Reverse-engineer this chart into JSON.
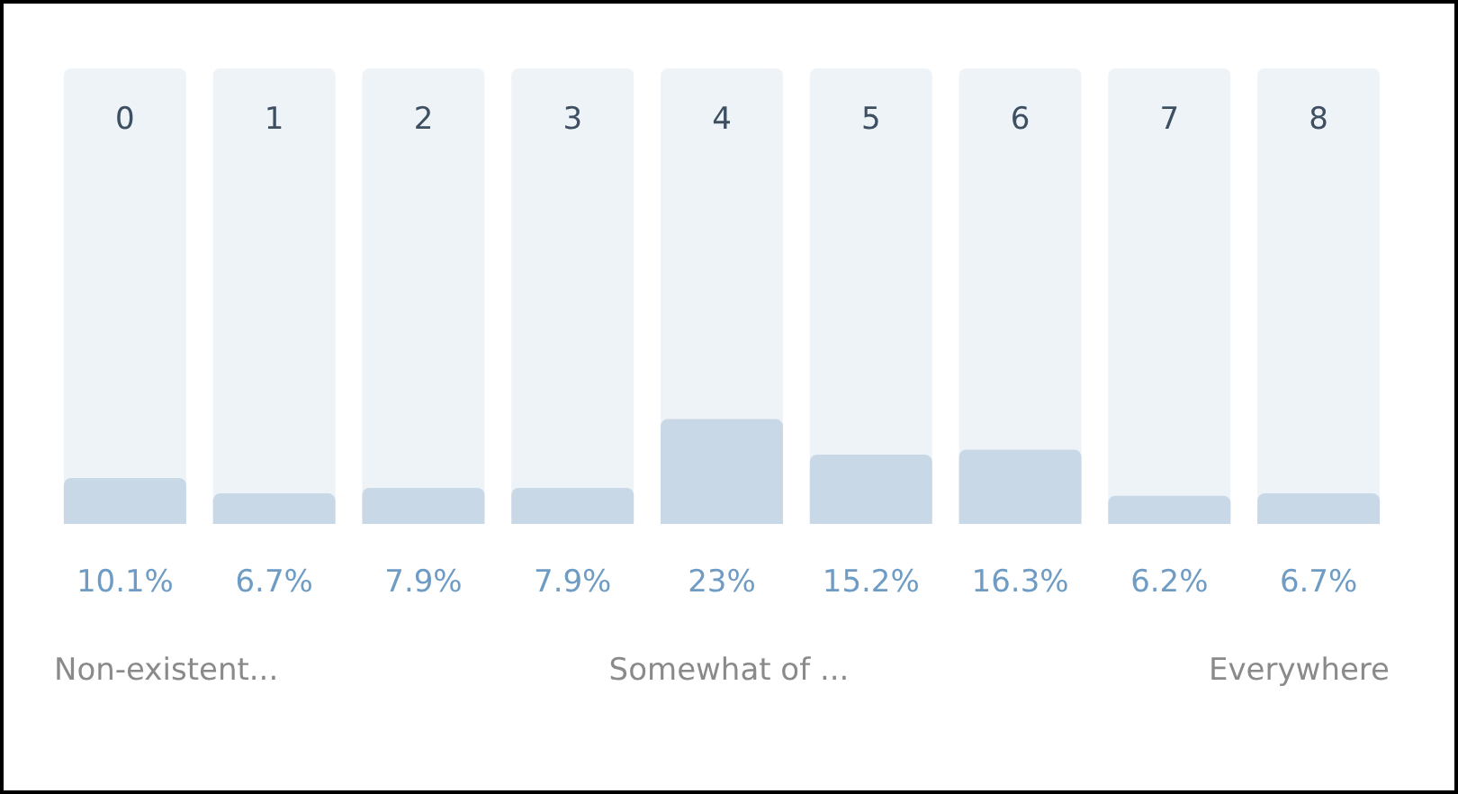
{
  "chart_data": {
    "type": "bar",
    "categories": [
      "0",
      "1",
      "2",
      "3",
      "4",
      "5",
      "6",
      "7",
      "8"
    ],
    "values": [
      10.1,
      6.7,
      7.9,
      7.9,
      23,
      15.2,
      16.3,
      6.2,
      6.7
    ],
    "value_labels": [
      "10.1%",
      "6.7%",
      "7.9%",
      "7.9%",
      "23%",
      "15.2%",
      "16.3%",
      "6.2%",
      "6.7%"
    ],
    "color": "#c9d8e6",
    "ylim": [
      0,
      100
    ],
    "annotations": [
      "Non-existent...",
      "Somewhat of ...",
      "Everywhere"
    ]
  }
}
